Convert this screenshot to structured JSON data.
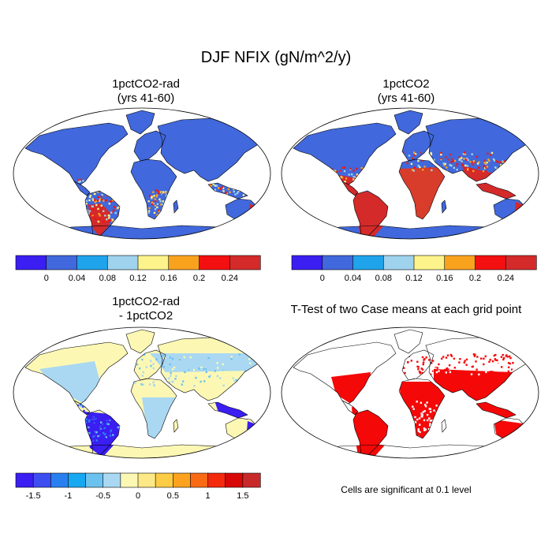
{
  "title": "DJF NFIX (gN/m^2/y)",
  "panels": [
    {
      "id": "a",
      "title_line1": "1pctCO2-rad",
      "title_line2": "(yrs 41-60)"
    },
    {
      "id": "b",
      "title_line1": "1pctCO2",
      "title_line2": "(yrs 41-60)"
    },
    {
      "id": "c",
      "title_line1": "1pctCO2-rad",
      "title_line2": "- 1pctCO2"
    },
    {
      "id": "d",
      "title_line1": "T-Test of two Case means at each grid point",
      "title_line2": ""
    }
  ],
  "colorbar_abs": {
    "colors": [
      "#3a1ef2",
      "#4168dc",
      "#1fa4ec",
      "#9fd2ec",
      "#fcf48a",
      "#f9a21e",
      "#f41010",
      "#d42a2a"
    ],
    "tick_labels": [
      "0",
      "0.04",
      "0.08",
      "0.12",
      "0.16",
      "0.2",
      "0.24"
    ]
  },
  "colorbar_diff": {
    "colors": [
      "#3a1ef2",
      "#3c4ef0",
      "#2a7ff0",
      "#16a8f0",
      "#6cc2ee",
      "#aad8f2",
      "#fcf8b4",
      "#fce886",
      "#fccc44",
      "#fca21e",
      "#f96a14",
      "#f42a0c",
      "#d80808",
      "#c82a2a"
    ],
    "tick_labels": [
      "-1.5",
      "-1",
      "-0.5",
      "0",
      "0.5",
      "1",
      "1.5"
    ]
  },
  "note": "Cells are significant at 0.1 level",
  "map_colors": {
    "ocean": "#ffffff",
    "coast": "#000000",
    "land_low": "#4168dc",
    "high": "#d42a2a",
    "mid": "#fcf48a",
    "diff_neutral": "#fcf8b4",
    "diff_light": "#aad8f2",
    "diff_blue": "#3a1ef2",
    "sig": "#f40808"
  }
}
